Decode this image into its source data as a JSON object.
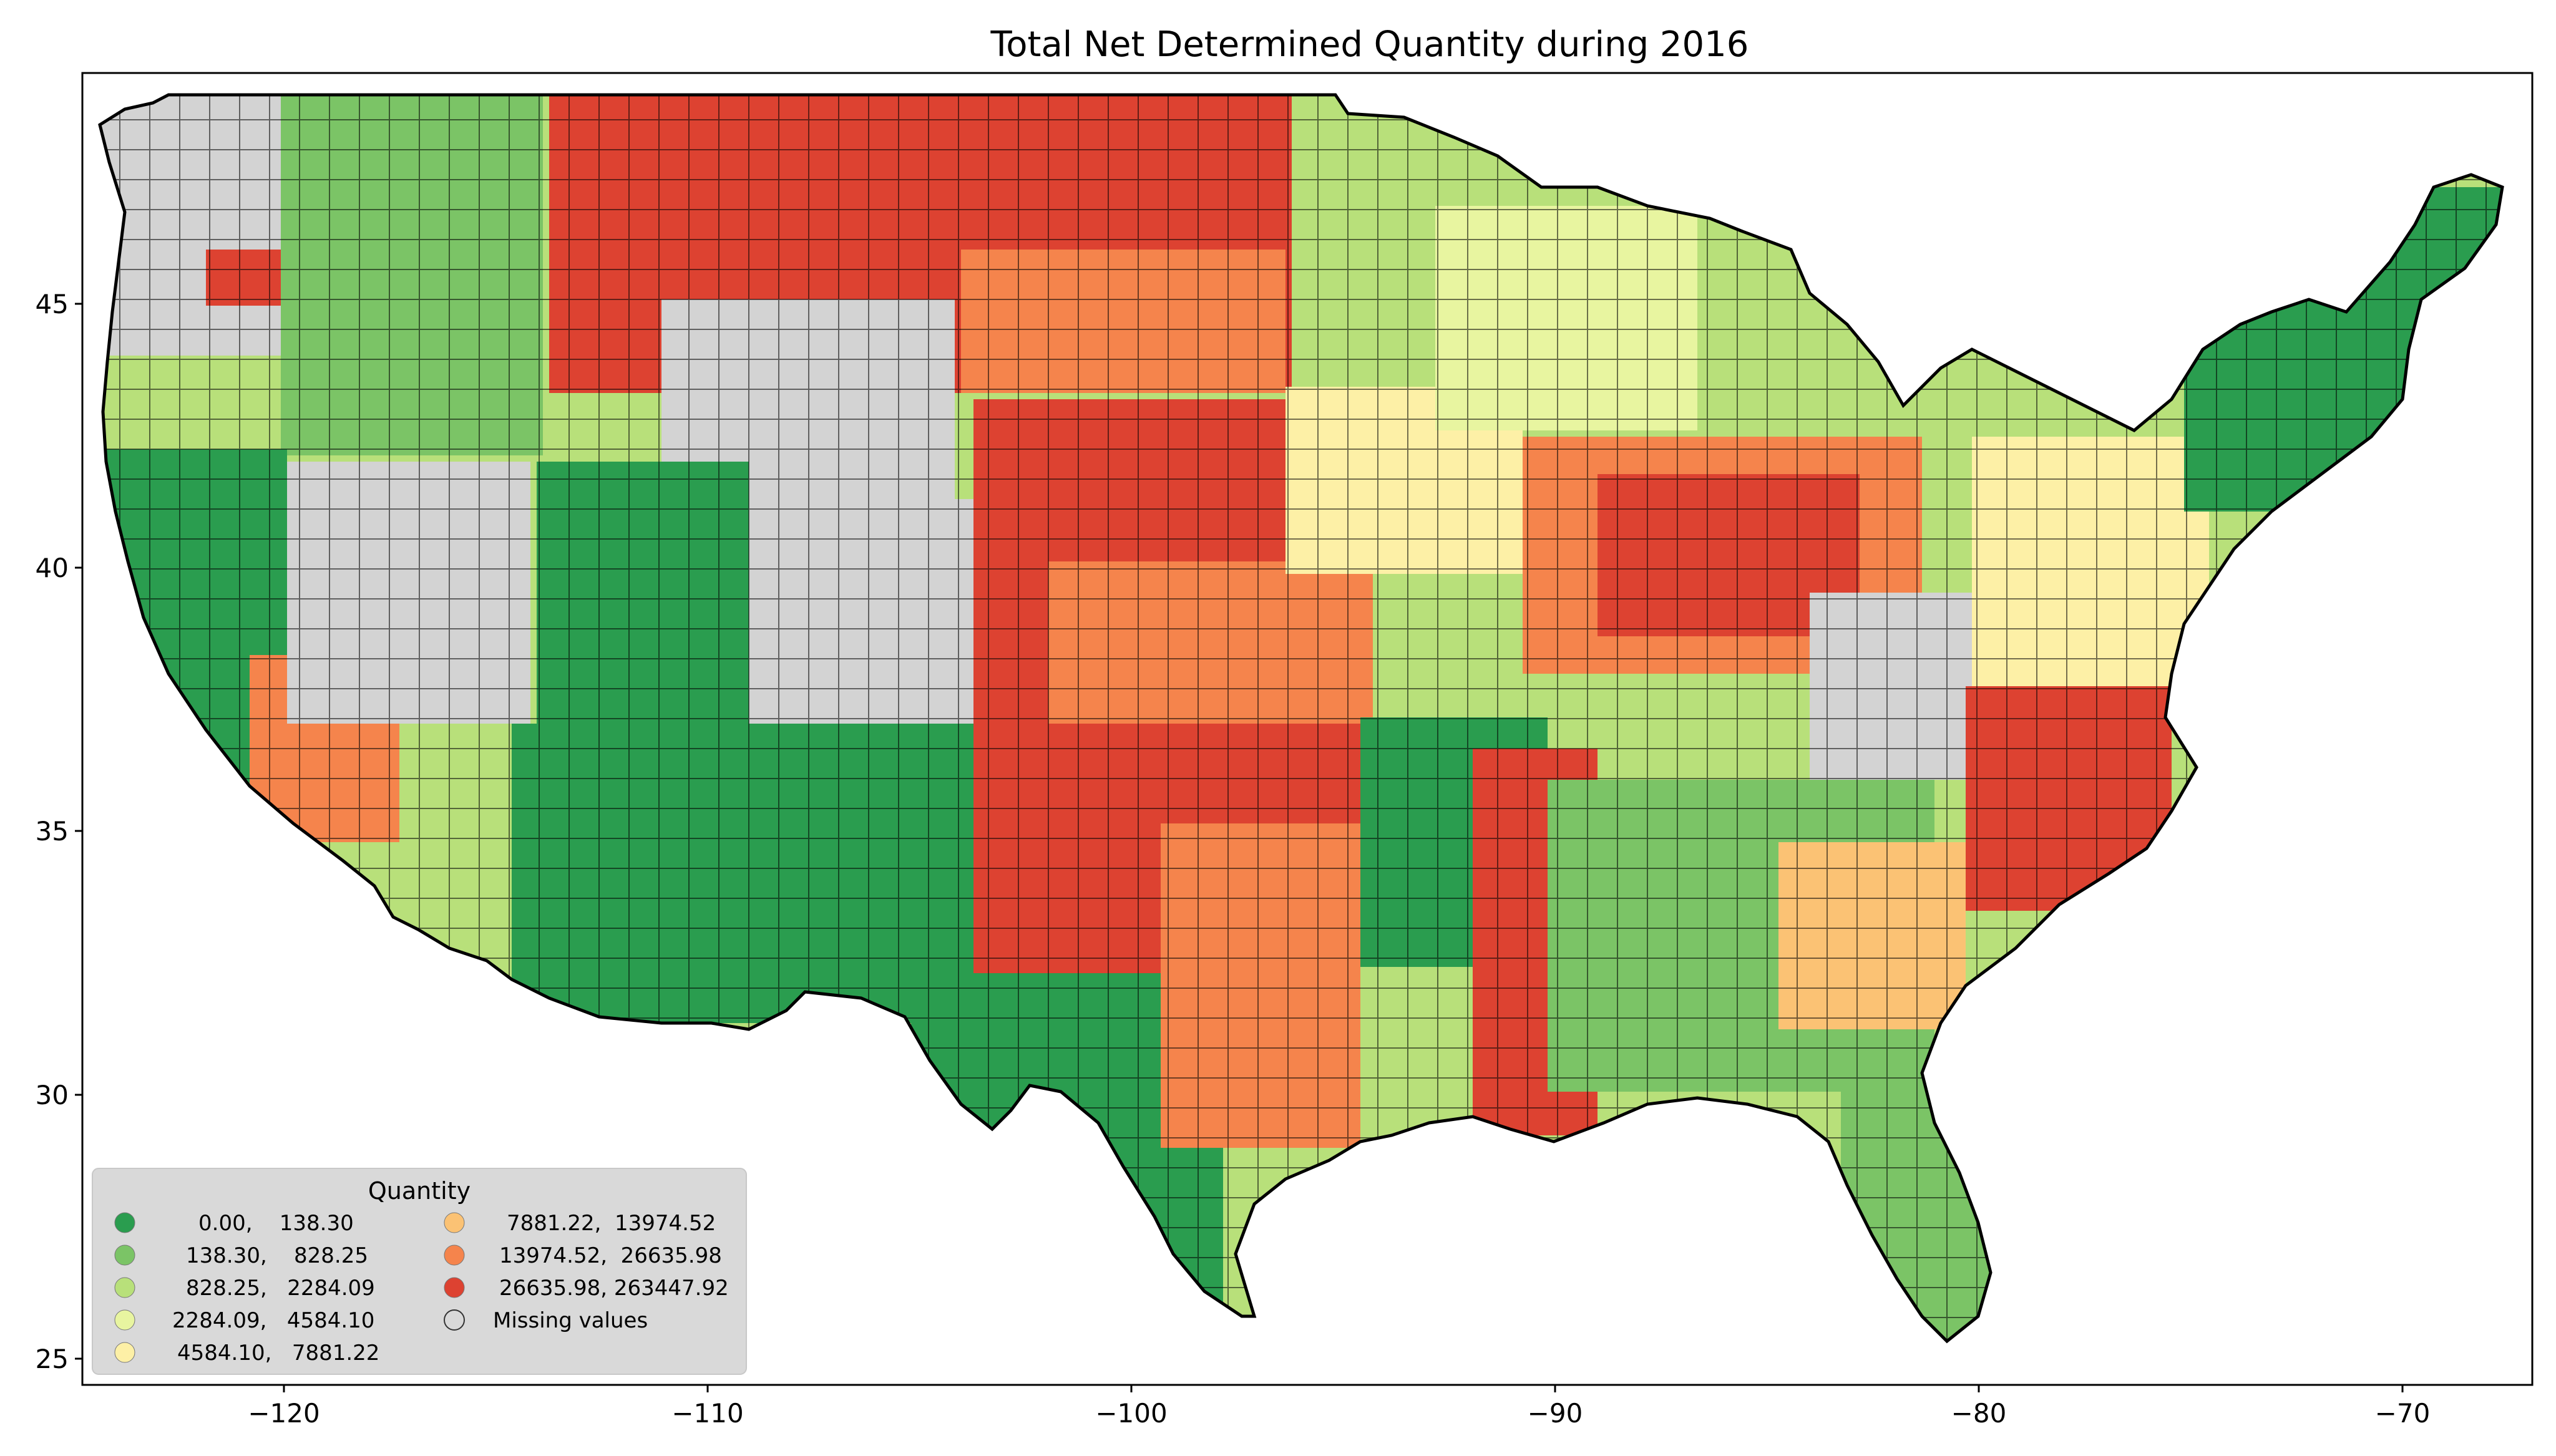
{
  "title": "Total Net Determined Quantity during 2016",
  "axes": {
    "x_ticks": [
      "−120",
      "−110",
      "−100",
      "−90",
      "−80",
      "−70"
    ],
    "y_ticks": [
      "45",
      "40",
      "35",
      "30",
      "25"
    ],
    "xlim": [
      -124.7,
      -66.9
    ],
    "ylim": [
      24.5,
      49.4
    ],
    "grid": false
  },
  "legend": {
    "title": "Quantity",
    "placement": "lower-left",
    "items": [
      {
        "label": "0.00,    138.30",
        "color": "#2a9d4f"
      },
      {
        "label": "138.30,    828.25",
        "color": "#7bc466"
      },
      {
        "label": "828.25,   2284.09",
        "color": "#b8e07a"
      },
      {
        "label": "2284.09,   4584.10",
        "color": "#e8f5a0"
      },
      {
        "label": "4584.10,   7881.22",
        "color": "#fdf0a6"
      },
      {
        "label": "7881.22,  13974.52",
        "color": "#fbc274"
      },
      {
        "label": "13974.52,  26635.98",
        "color": "#f5844c"
      },
      {
        "label": "26635.98, 263447.92",
        "color": "#dd4231"
      },
      {
        "label": "Missing values",
        "color": "#d3d3d3"
      }
    ]
  },
  "colors": {
    "missing": "#d3d3d3",
    "border": "#000000",
    "background": "#ffffff"
  }
}
